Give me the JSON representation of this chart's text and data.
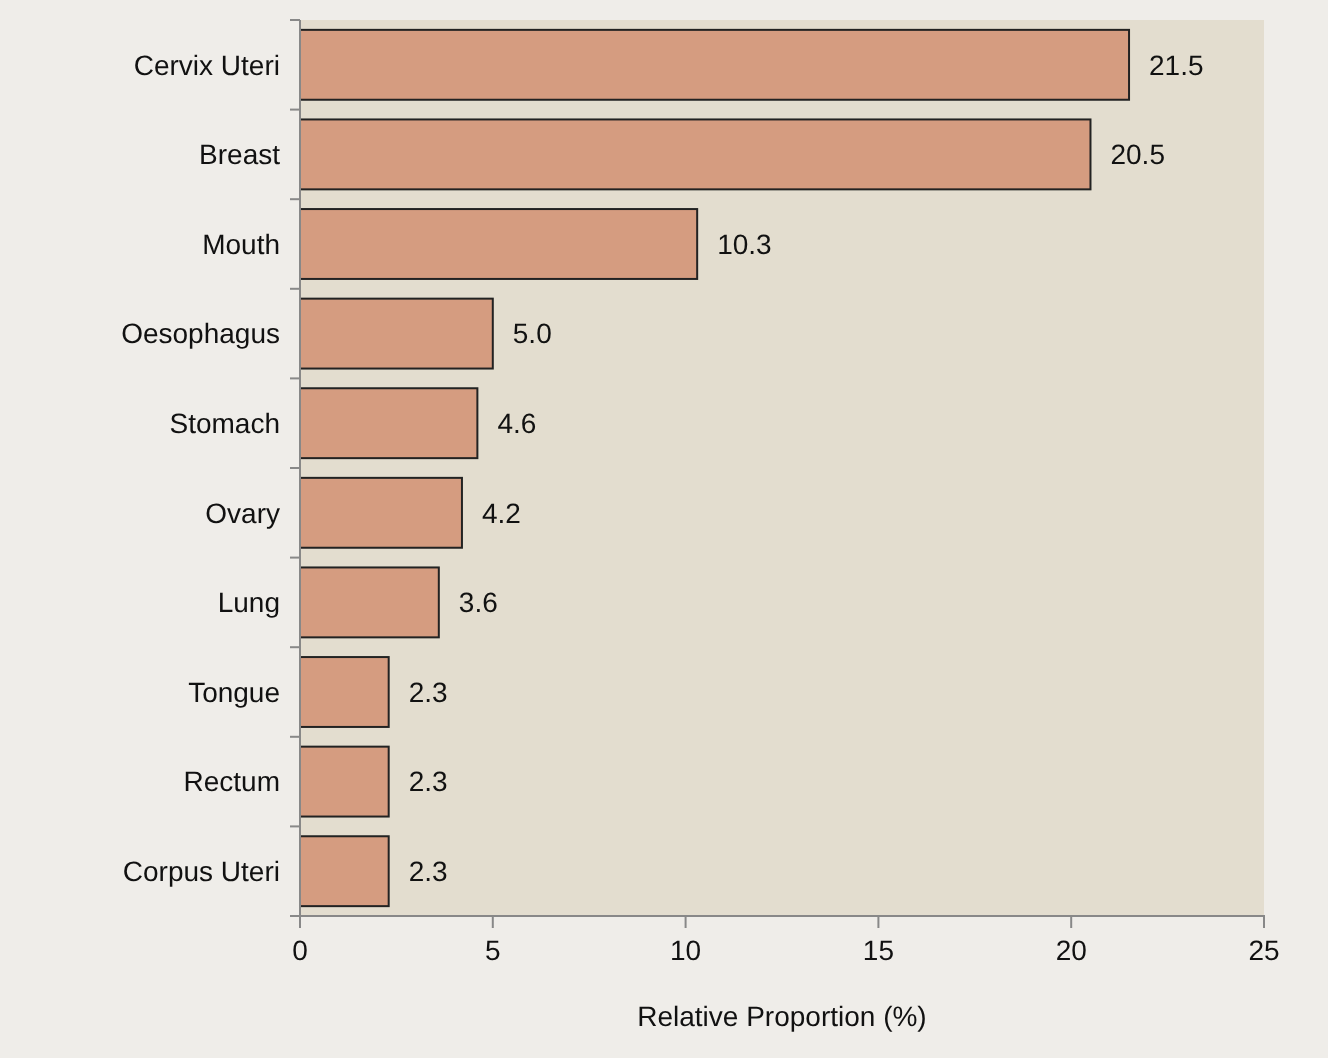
{
  "chart_data": {
    "type": "bar",
    "orientation": "horizontal",
    "categories": [
      "Cervix Uteri",
      "Breast",
      "Mouth",
      "Oesophagus",
      "Stomach",
      "Ovary",
      "Lung",
      "Tongue",
      "Rectum",
      "Corpus Uteri"
    ],
    "values": [
      21.5,
      20.5,
      10.3,
      5.0,
      4.6,
      4.2,
      3.6,
      2.3,
      2.3,
      2.3
    ],
    "value_labels": [
      "21.5",
      "20.5",
      "10.3",
      "5.0",
      "4.6",
      "4.2",
      "3.6",
      "2.3",
      "2.3",
      "2.3"
    ],
    "color": "#d59c80",
    "xlim": [
      0,
      25
    ],
    "xticks": [
      0,
      5,
      10,
      15,
      20,
      25
    ],
    "xlabel": "Relative Proportion (%)"
  }
}
